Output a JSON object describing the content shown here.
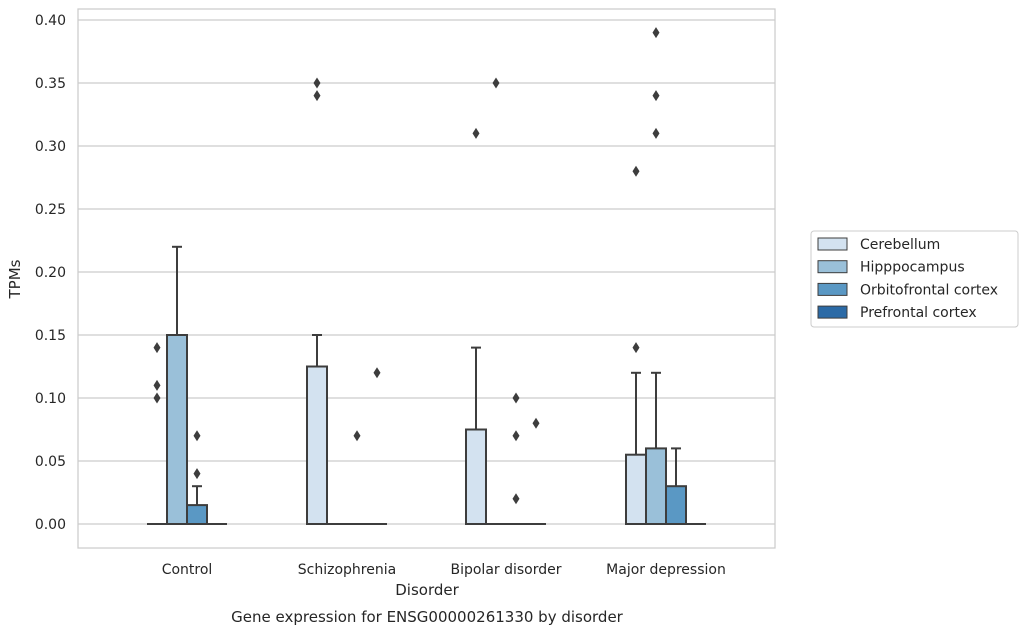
{
  "chart_data": {
    "type": "box",
    "title": "",
    "caption": "Gene expression for ENSG00000261330 by disorder",
    "xlabel": "Disorder",
    "ylabel": "TPMs",
    "ylim": [
      -0.018,
      0.41
    ],
    "yticks": [
      "0.00",
      "0.05",
      "0.10",
      "0.15",
      "0.20",
      "0.25",
      "0.30",
      "0.35",
      "0.40"
    ],
    "grid": "horizontal",
    "legend_position": "right",
    "categories": [
      "Control",
      "Schizophrenia",
      "Bipolar disorder",
      "Major depression"
    ],
    "series": [
      {
        "name": "Cerebellum",
        "color": "#d3e2f0",
        "boxes": [
          {
            "q1": 0,
            "median": 0,
            "q3": 0,
            "whisker_low": 0,
            "whisker_high": 0,
            "outliers": [
              0.14,
              0.11,
              0.1
            ]
          },
          {
            "q1": 0,
            "median": 0,
            "q3": 0.125,
            "whisker_low": 0,
            "whisker_high": 0.15,
            "outliers": [
              0.35,
              0.34
            ]
          },
          {
            "q1": 0,
            "median": 0,
            "q3": 0.075,
            "whisker_low": 0,
            "whisker_high": 0.14,
            "outliers": [
              0.31
            ]
          },
          {
            "q1": 0,
            "median": 0,
            "q3": 0.055,
            "whisker_low": 0,
            "whisker_high": 0.12,
            "outliers": [
              0.14,
              0.28
            ]
          }
        ]
      },
      {
        "name": "Hipppocampus",
        "color": "#9ac0d9",
        "boxes": [
          {
            "q1": 0,
            "median": 0,
            "q3": 0.15,
            "whisker_low": 0,
            "whisker_high": 0.22,
            "outliers": []
          },
          {
            "q1": 0,
            "median": 0,
            "q3": 0,
            "whisker_low": 0,
            "whisker_high": 0,
            "outliers": []
          },
          {
            "q1": 0,
            "median": 0,
            "q3": 0,
            "whisker_low": 0,
            "whisker_high": 0,
            "outliers": [
              0.35
            ]
          },
          {
            "q1": 0,
            "median": 0,
            "q3": 0.06,
            "whisker_low": 0,
            "whisker_high": 0.12,
            "outliers": [
              0.31,
              0.34,
              0.39
            ]
          }
        ]
      },
      {
        "name": "Orbitofrontal cortex",
        "color": "#5a98c4",
        "boxes": [
          {
            "q1": 0,
            "median": 0,
            "q3": 0.015,
            "whisker_low": 0,
            "whisker_high": 0.03,
            "outliers": [
              0.04,
              0.07
            ]
          },
          {
            "q1": 0,
            "median": 0,
            "q3": 0,
            "whisker_low": 0,
            "whisker_high": 0,
            "outliers": [
              0.07
            ]
          },
          {
            "q1": 0,
            "median": 0,
            "q3": 0,
            "whisker_low": 0,
            "whisker_high": 0,
            "outliers": [
              0.02,
              0.07,
              0.1
            ]
          },
          {
            "q1": 0,
            "median": 0,
            "q3": 0.03,
            "whisker_low": 0,
            "whisker_high": 0.06,
            "outliers": []
          }
        ]
      },
      {
        "name": "Prefrontal cortex",
        "color": "#2b6aa6",
        "boxes": [
          {
            "q1": 0,
            "median": 0,
            "q3": 0,
            "whisker_low": 0,
            "whisker_high": 0,
            "outliers": []
          },
          {
            "q1": 0,
            "median": 0,
            "q3": 0,
            "whisker_low": 0,
            "whisker_high": 0,
            "outliers": [
              0.12
            ]
          },
          {
            "q1": 0,
            "median": 0,
            "q3": 0,
            "whisker_low": 0,
            "whisker_high": 0,
            "outliers": [
              0.08
            ]
          },
          {
            "q1": 0,
            "median": 0,
            "q3": 0,
            "whisker_low": 0,
            "whisker_high": 0,
            "outliers": []
          }
        ]
      }
    ]
  }
}
